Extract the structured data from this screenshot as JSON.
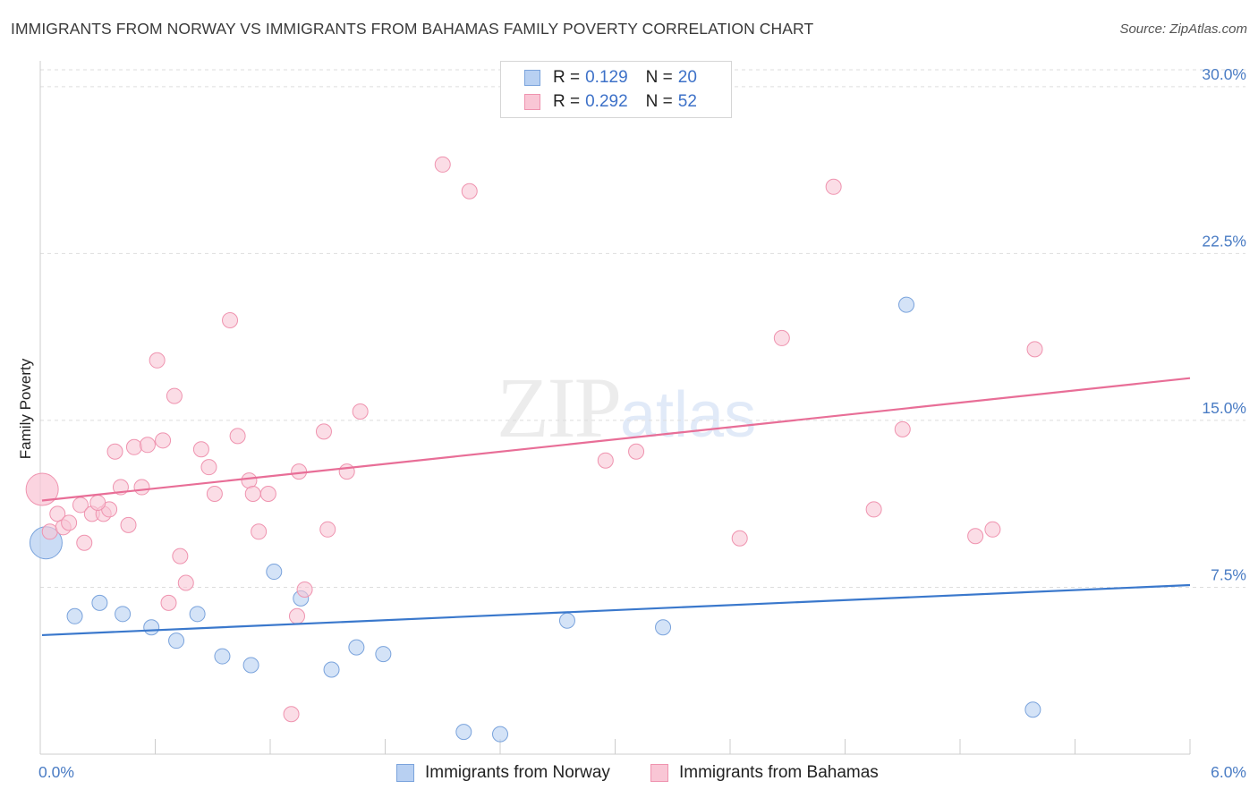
{
  "title": "IMMIGRANTS FROM NORWAY VS IMMIGRANTS FROM BAHAMAS FAMILY POVERTY CORRELATION CHART",
  "source": "Source: ZipAtlas.com",
  "watermark": {
    "zip": "ZIP",
    "atlas": "atlas"
  },
  "legend": {
    "norway": {
      "r_label": "R =",
      "r_value": "0.129",
      "n_label": "N =",
      "n_value": "20"
    },
    "bahamas": {
      "r_label": "R =",
      "r_value": "0.292",
      "n_label": "N =",
      "n_value": "52"
    }
  },
  "colors": {
    "norway_fill": "#b8d0f2",
    "norway_stroke": "#7aa3dc",
    "norway_line": "#3a78cc",
    "bahamas_fill": "#f9c6d5",
    "bahamas_stroke": "#ef93af",
    "bahamas_line": "#e86e97",
    "grid": "#dddddd",
    "axis": "#cccccc"
  },
  "chart_data": {
    "type": "scatter",
    "title": "IMMIGRANTS FROM NORWAY VS IMMIGRANTS FROM BAHAMAS FAMILY POVERTY CORRELATION CHART",
    "xlabel": "",
    "ylabel": "Family Poverty",
    "xlim": [
      0,
      6
    ],
    "ylim": [
      0,
      31
    ],
    "x_tick_labels": [
      {
        "value": 0,
        "label": "0.0%"
      },
      {
        "value": 6,
        "label": "6.0%"
      }
    ],
    "y_ticks": [
      {
        "value": 7.5,
        "label": "7.5%"
      },
      {
        "value": 15,
        "label": "15.0%"
      },
      {
        "value": 22.5,
        "label": "22.5%"
      },
      {
        "value": 30,
        "label": "30.0%"
      }
    ],
    "series": [
      {
        "name": "Immigrants from Norway",
        "key": "norway",
        "points": [
          {
            "x": 0.03,
            "y": 9.5,
            "big": true
          },
          {
            "x": 0.18,
            "y": 6.2
          },
          {
            "x": 0.31,
            "y": 6.8
          },
          {
            "x": 0.43,
            "y": 6.3
          },
          {
            "x": 0.58,
            "y": 5.7
          },
          {
            "x": 0.71,
            "y": 5.1
          },
          {
            "x": 0.82,
            "y": 6.3
          },
          {
            "x": 0.95,
            "y": 4.4
          },
          {
            "x": 1.1,
            "y": 4.0
          },
          {
            "x": 1.22,
            "y": 8.2
          },
          {
            "x": 1.36,
            "y": 7.0
          },
          {
            "x": 1.52,
            "y": 3.8
          },
          {
            "x": 1.65,
            "y": 4.8
          },
          {
            "x": 1.79,
            "y": 4.5
          },
          {
            "x": 2.21,
            "y": 1.0
          },
          {
            "x": 2.4,
            "y": 0.9
          },
          {
            "x": 2.75,
            "y": 6.0
          },
          {
            "x": 3.25,
            "y": 5.7
          },
          {
            "x": 4.52,
            "y": 20.2
          },
          {
            "x": 5.18,
            "y": 2.0
          }
        ],
        "trend": {
          "x": [
            0,
            6
          ],
          "y": [
            5.35,
            7.6
          ]
        }
      },
      {
        "name": "Immigrants from Bahamas",
        "key": "bahamas",
        "points": [
          {
            "x": 0.01,
            "y": 11.9,
            "big": true
          },
          {
            "x": 0.05,
            "y": 10.0
          },
          {
            "x": 0.09,
            "y": 10.8
          },
          {
            "x": 0.12,
            "y": 10.2
          },
          {
            "x": 0.15,
            "y": 10.4
          },
          {
            "x": 0.21,
            "y": 11.2
          },
          {
            "x": 0.23,
            "y": 9.5
          },
          {
            "x": 0.27,
            "y": 10.8
          },
          {
            "x": 0.33,
            "y": 10.8
          },
          {
            "x": 0.36,
            "y": 11.0
          },
          {
            "x": 0.39,
            "y": 13.6
          },
          {
            "x": 0.42,
            "y": 12.0
          },
          {
            "x": 0.46,
            "y": 10.3
          },
          {
            "x": 0.49,
            "y": 13.8
          },
          {
            "x": 0.53,
            "y": 12.0
          },
          {
            "x": 0.56,
            "y": 13.9
          },
          {
            "x": 0.61,
            "y": 17.7
          },
          {
            "x": 0.64,
            "y": 14.1
          },
          {
            "x": 0.67,
            "y": 6.8
          },
          {
            "x": 0.7,
            "y": 16.1
          },
          {
            "x": 0.73,
            "y": 8.9
          },
          {
            "x": 0.76,
            "y": 7.7
          },
          {
            "x": 0.84,
            "y": 13.7
          },
          {
            "x": 0.88,
            "y": 12.9
          },
          {
            "x": 0.91,
            "y": 11.7
          },
          {
            "x": 0.99,
            "y": 19.5
          },
          {
            "x": 1.03,
            "y": 14.3
          },
          {
            "x": 1.09,
            "y": 12.3
          },
          {
            "x": 1.11,
            "y": 11.7
          },
          {
            "x": 1.14,
            "y": 10.0
          },
          {
            "x": 1.19,
            "y": 11.7
          },
          {
            "x": 1.31,
            "y": 1.8
          },
          {
            "x": 1.34,
            "y": 6.2
          },
          {
            "x": 1.35,
            "y": 12.7
          },
          {
            "x": 1.38,
            "y": 7.4
          },
          {
            "x": 1.48,
            "y": 14.5
          },
          {
            "x": 1.5,
            "y": 10.1
          },
          {
            "x": 1.6,
            "y": 12.7
          },
          {
            "x": 1.67,
            "y": 15.4
          },
          {
            "x": 2.1,
            "y": 26.5
          },
          {
            "x": 2.24,
            "y": 25.3
          },
          {
            "x": 2.95,
            "y": 13.2
          },
          {
            "x": 3.11,
            "y": 13.6
          },
          {
            "x": 3.65,
            "y": 9.7
          },
          {
            "x": 3.87,
            "y": 18.7
          },
          {
            "x": 4.14,
            "y": 25.5
          },
          {
            "x": 4.35,
            "y": 11.0
          },
          {
            "x": 4.5,
            "y": 14.6
          },
          {
            "x": 4.88,
            "y": 9.8
          },
          {
            "x": 4.97,
            "y": 10.1
          },
          {
            "x": 5.19,
            "y": 18.2
          },
          {
            "x": 0.3,
            "y": 11.3
          }
        ],
        "trend": {
          "x": [
            0,
            6
          ],
          "y": [
            11.4,
            16.9
          ]
        }
      }
    ]
  },
  "bottom_legend": {
    "norway": "Immigrants from Norway",
    "bahamas": "Immigrants from Bahamas"
  }
}
